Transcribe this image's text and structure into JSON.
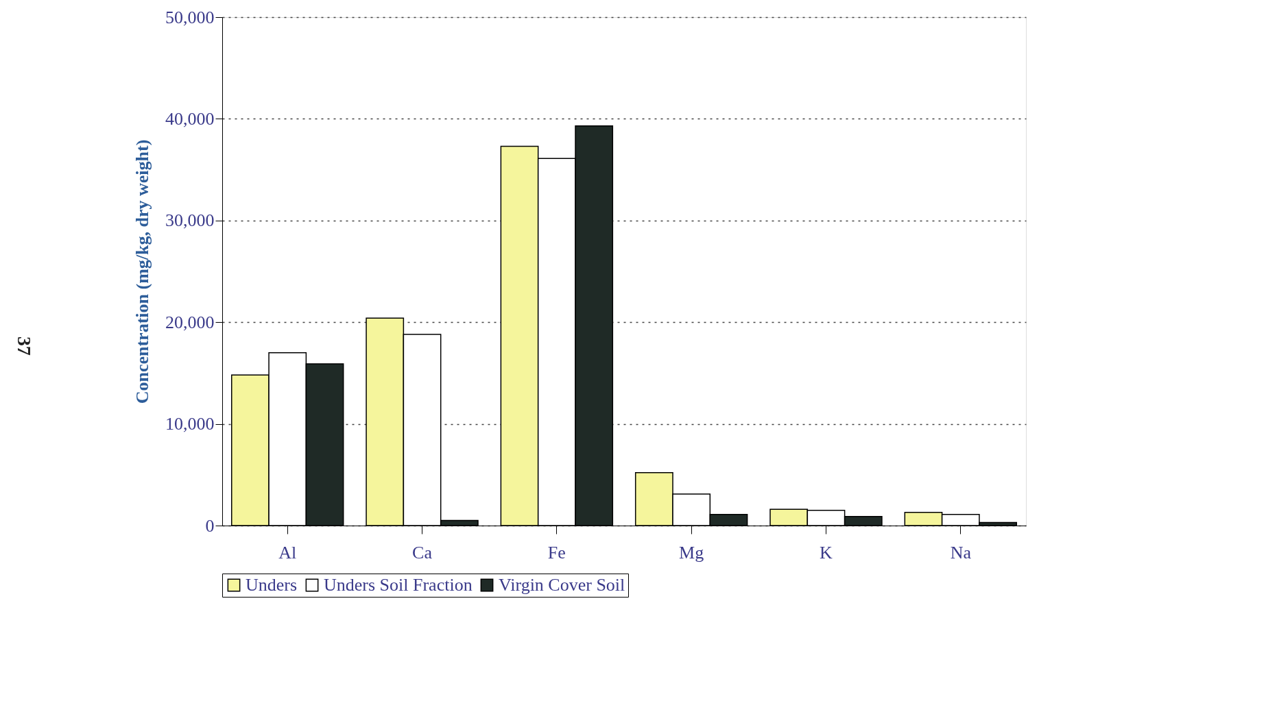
{
  "chart_data": {
    "type": "bar",
    "ylabel": "Concentration (mg/kg, dry weight)",
    "categories": [
      "Al",
      "Ca",
      "Fe",
      "Mg",
      "K",
      "Na"
    ],
    "series": [
      {
        "name": "Unders",
        "color": "#f5f59c",
        "values": [
          14800,
          20400,
          37300,
          5200,
          1600,
          1300
        ]
      },
      {
        "name": "Unders Soil Fraction",
        "color": "#ffffff",
        "values": [
          17000,
          18800,
          36100,
          3100,
          1500,
          1100
        ]
      },
      {
        "name": "Virgin Cover Soil",
        "color": "#1f2a26",
        "values": [
          15900,
          500,
          39300,
          1100,
          900,
          300
        ]
      }
    ],
    "ylim": [
      0,
      50000
    ],
    "yticks": [
      0,
      {
        "value": 10000,
        "label": "10,000"
      },
      {
        "value": 20000,
        "label": "20,000"
      },
      {
        "value": 30000,
        "label": "30,000"
      },
      {
        "value": 40000,
        "label": "40,000"
      },
      {
        "value": 50000,
        "label": "50,000"
      }
    ],
    "grid": "y",
    "legend": "bottom",
    "annotations": [
      "37"
    ]
  }
}
